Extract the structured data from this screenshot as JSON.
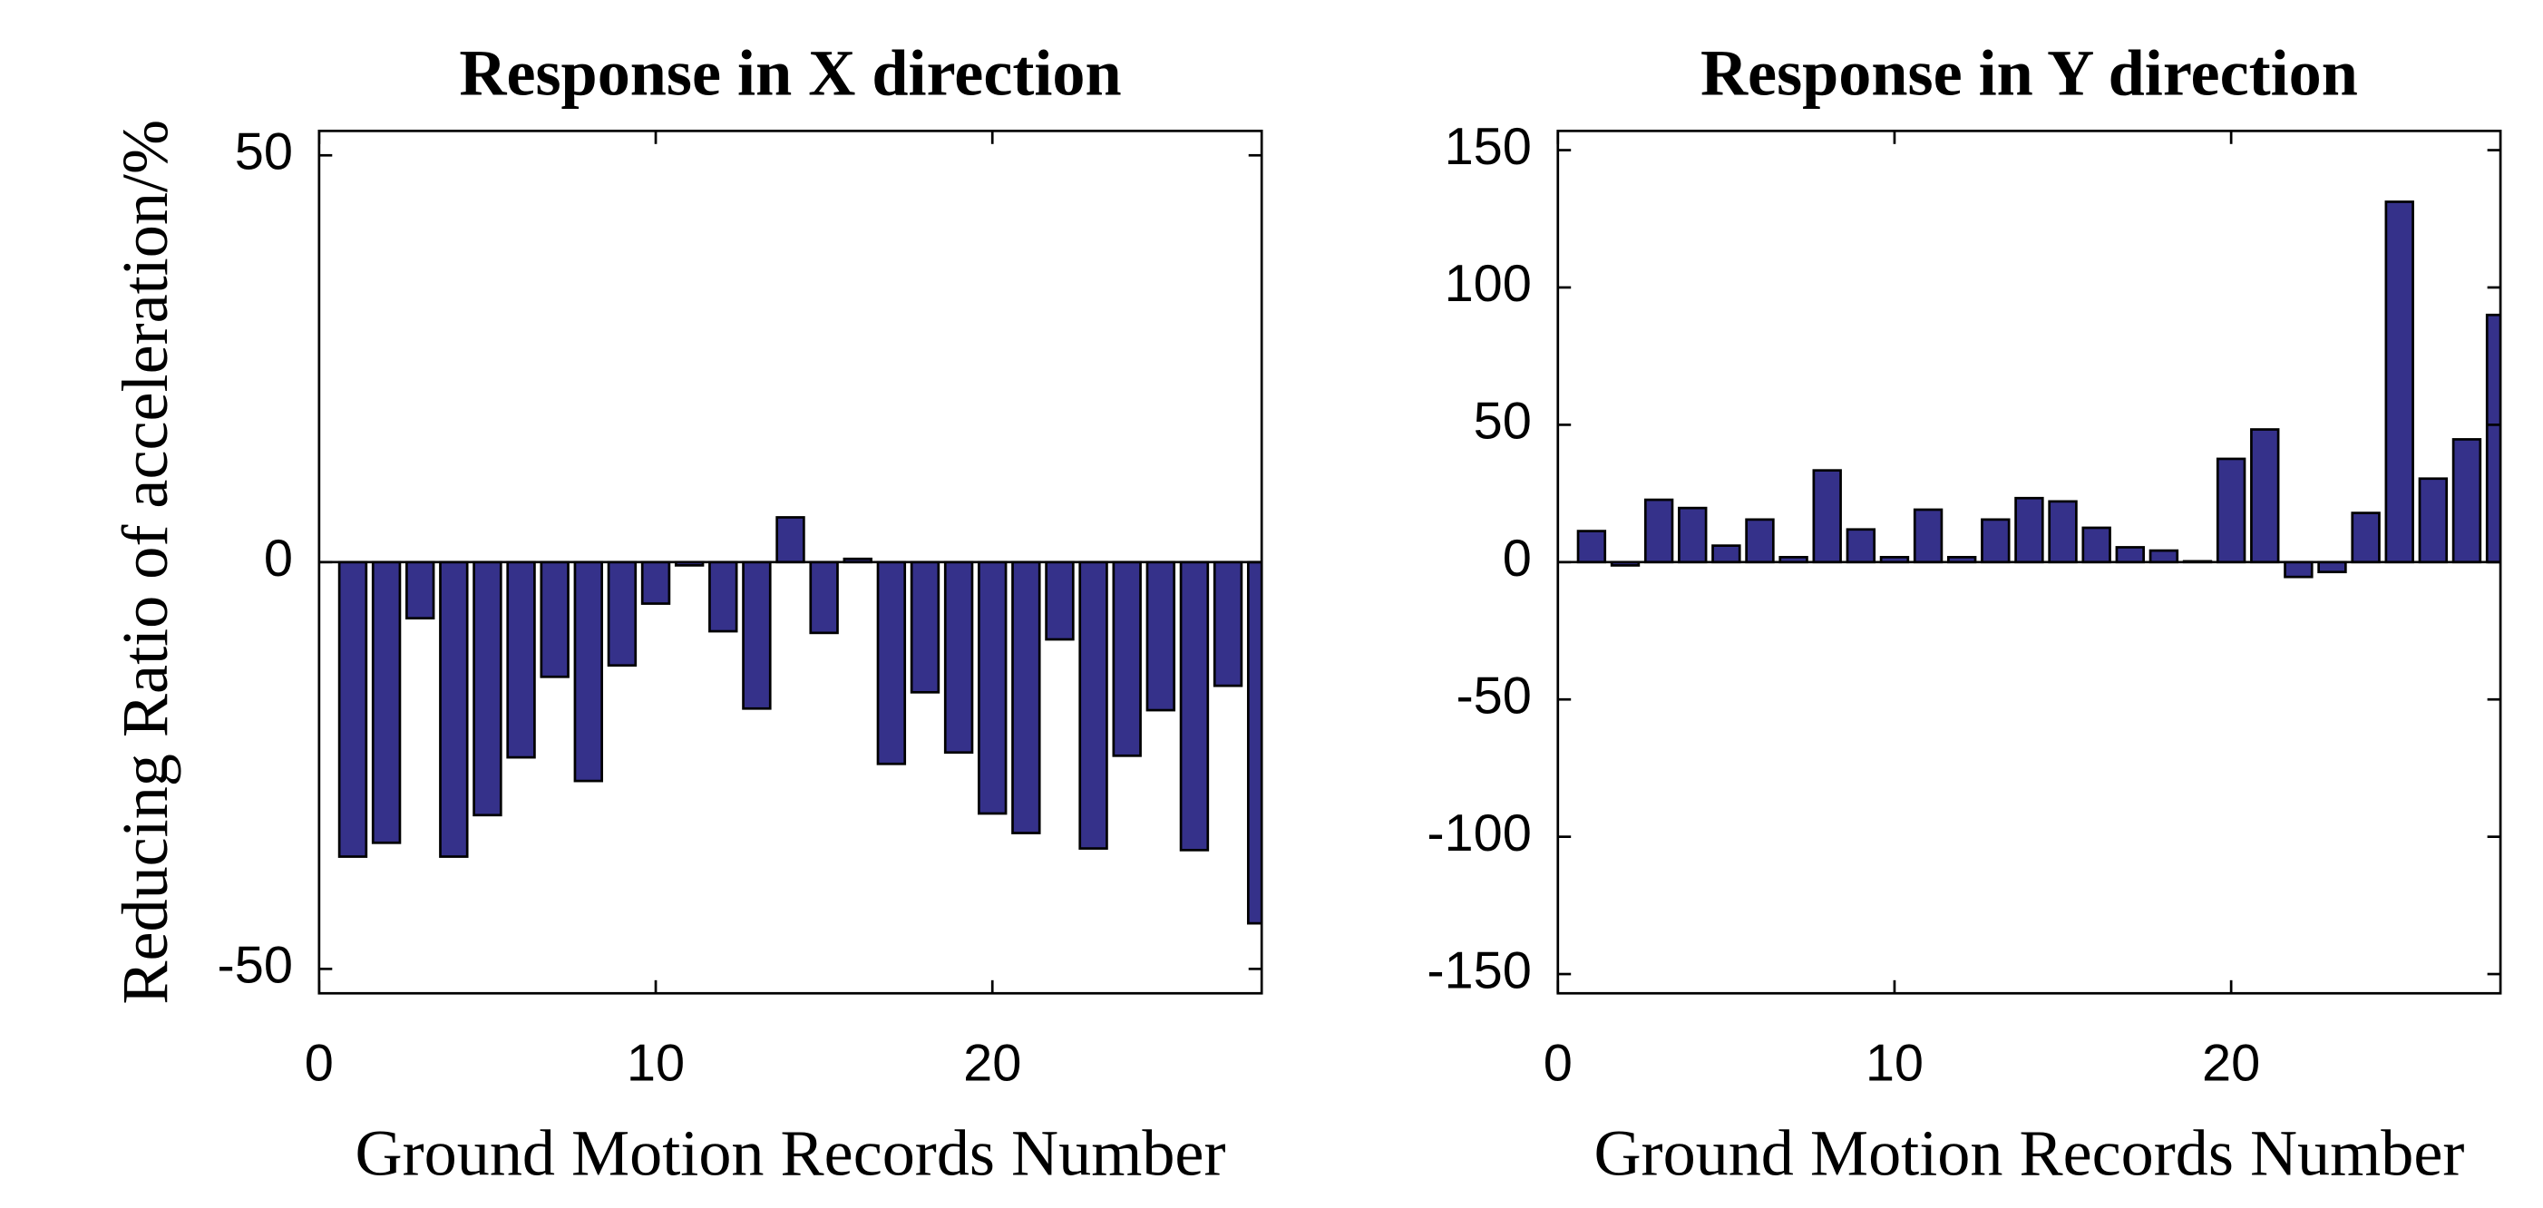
{
  "chart_data": [
    {
      "type": "bar",
      "title": "Response in X direction",
      "xlabel": "Ground Motion Records Number",
      "ylabel": "Reducing Ratio of acceleration/%",
      "x": [
        1,
        2,
        3,
        4,
        5,
        6,
        7,
        8,
        9,
        10,
        11,
        12,
        13,
        14,
        15,
        16,
        17,
        18,
        19,
        20,
        21,
        22,
        23,
        24,
        25,
        26,
        27,
        28
      ],
      "values": [
        -36.2,
        -34.5,
        -6.9,
        -36.2,
        -31.1,
        -24.0,
        -14.1,
        -26.9,
        -12.7,
        -5.1,
        -0.4,
        -8.5,
        -18.0,
        5.5,
        -8.7,
        0.4,
        -24.8,
        -16.0,
        -23.4,
        -30.9,
        -33.3,
        -9.5,
        -35.2,
        -23.8,
        -18.2,
        -35.4,
        -15.2,
        -44.4
      ],
      "color": "#35318a",
      "xlim": [
        0,
        28
      ],
      "ylim": [
        -53,
        53
      ],
      "xticks": [
        0,
        10,
        20
      ],
      "yticks": [
        -50,
        0,
        50
      ]
    },
    {
      "type": "bar",
      "title": "Response in Y direction",
      "xlabel": "Ground Motion Records Number",
      "x": [
        1,
        2,
        3,
        4,
        5,
        6,
        7,
        8,
        9,
        10,
        11,
        12,
        13,
        14,
        15,
        16,
        17,
        18,
        19,
        20,
        21,
        22,
        23,
        24,
        25,
        26,
        27,
        28
      ],
      "values": [
        11.3,
        -1.2,
        22.7,
        19.7,
        6.0,
        15.5,
        1.8,
        33.4,
        11.9,
        1.8,
        19.1,
        1.8,
        15.5,
        23.3,
        22.1,
        12.5,
        5.4,
        4.2,
        0.3,
        37.6,
        48.3,
        -5.4,
        -3.6,
        17.9,
        131.2,
        30.4,
        44.7,
        90.0
      ],
      "color": "#35318a",
      "xlim": [
        0,
        28
      ],
      "ylim": [
        -157,
        157
      ],
      "xticks": [
        0,
        10,
        20
      ],
      "yticks": [
        -150,
        -100,
        -50,
        0,
        50,
        100,
        150
      ]
    }
  ]
}
